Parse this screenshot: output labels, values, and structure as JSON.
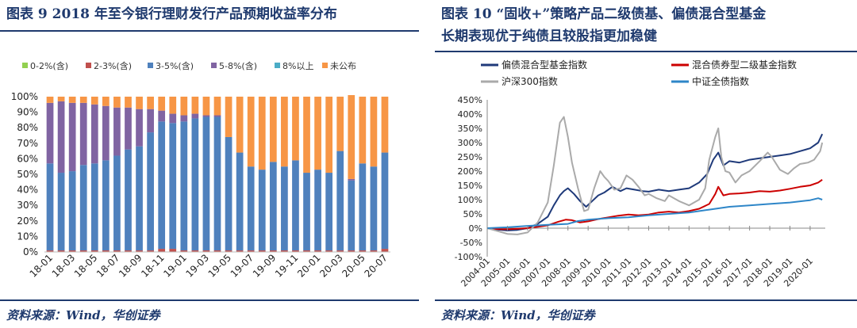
{
  "left": {
    "title": "图表 9   2018 年至今银行理财发行产品预期收益率分布",
    "source": "资料来源：Wind，华创证券"
  },
  "right": {
    "title_line1": "图表 10   “固收+”策略产品二级债基、偏债混合型基金",
    "title_line2": "长期表现优于纯债且较股指更加稳健",
    "source": "资料来源：Wind，华创证券"
  },
  "chart_data": [
    {
      "type": "bar",
      "stacked": true,
      "legend_position": "top",
      "categories": [
        "18-01",
        "18-02",
        "18-03",
        "18-04",
        "18-05",
        "18-06",
        "18-07",
        "18-08",
        "18-09",
        "18-10",
        "18-11",
        "18-12",
        "19-01",
        "19-02",
        "19-03",
        "19-04",
        "19-05",
        "19-06",
        "19-07",
        "19-08",
        "19-09",
        "19-10",
        "19-11",
        "19-12",
        "20-01",
        "20-02",
        "20-03",
        "20-04",
        "20-05",
        "20-06",
        "20-07"
      ],
      "xtick_labels": [
        "18-01",
        "18-03",
        "18-05",
        "18-07",
        "18-09",
        "18-11",
        "19-01",
        "19-03",
        "19-05",
        "19-07",
        "19-09",
        "19-11",
        "20-01",
        "20-03",
        "20-05",
        "20-07"
      ],
      "yticks": [
        "0%",
        "10%",
        "20%",
        "30%",
        "40%",
        "50%",
        "60%",
        "70%",
        "80%",
        "90%",
        "100%"
      ],
      "ylim": [
        0,
        100
      ],
      "series": [
        {
          "name": "0-2%(含)",
          "color": "#92d050",
          "values": [
            0,
            0,
            0,
            0,
            0,
            0,
            0,
            0,
            0,
            0,
            0,
            0,
            0,
            0,
            0,
            0,
            0,
            0,
            0,
            0,
            0,
            0,
            0,
            0,
            0,
            0,
            0,
            0,
            0,
            0,
            0
          ]
        },
        {
          "name": "2-3%(含)",
          "color": "#c0504d",
          "values": [
            1,
            1,
            1,
            1,
            1,
            1,
            1,
            1,
            1,
            1,
            2,
            2,
            1,
            1,
            1,
            1,
            1,
            1,
            1,
            1,
            1,
            1,
            1,
            1,
            1,
            1,
            1,
            1,
            1,
            1,
            2
          ]
        },
        {
          "name": "3-5%(含)",
          "color": "#4f81bd",
          "values": [
            56,
            50,
            51,
            55,
            56,
            58,
            61,
            65,
            67,
            76,
            82,
            81,
            83,
            85,
            86,
            86,
            73,
            63,
            54,
            52,
            57,
            54,
            58,
            50,
            52,
            50,
            64,
            45,
            56,
            54,
            62
          ]
        },
        {
          "name": "5-8%(含)",
          "color": "#8064a2",
          "values": [
            39,
            46,
            44,
            40,
            38,
            35,
            31,
            27,
            24,
            15,
            7,
            6,
            4,
            3,
            1,
            1,
            0,
            0,
            0,
            0,
            0,
            0,
            0,
            0,
            0,
            0,
            0,
            1,
            0,
            0,
            0
          ]
        },
        {
          "name": "8%以上",
          "color": "#4bacc6",
          "values": [
            0,
            0,
            0,
            0,
            0,
            0,
            0,
            0,
            0,
            0,
            0,
            0,
            0,
            0,
            0,
            0,
            0,
            0,
            0,
            0,
            0,
            0,
            0,
            0,
            0,
            0,
            0,
            0,
            0,
            0,
            0
          ]
        },
        {
          "name": "未公布",
          "color": "#f79646",
          "values": [
            4,
            3,
            4,
            4,
            5,
            6,
            7,
            7,
            8,
            8,
            9,
            11,
            12,
            11,
            12,
            12,
            26,
            36,
            45,
            47,
            42,
            45,
            41,
            49,
            47,
            49,
            35,
            54,
            43,
            45,
            36
          ]
        }
      ]
    },
    {
      "type": "line",
      "legend_position": "top",
      "xtick_labels": [
        "2004-01",
        "2005-01",
        "2006-01",
        "2007-01",
        "2008-01",
        "2009-01",
        "2010-01",
        "2011-01",
        "2012-01",
        "2013-01",
        "2014-01",
        "2015-01",
        "2016-01",
        "2017-01",
        "2018-01",
        "2019-01",
        "2020-01"
      ],
      "xlim": [
        2004.0,
        2020.75
      ],
      "yticks": [
        "-100%",
        "-50%",
        "0%",
        "50%",
        "100%",
        "150%",
        "200%",
        "250%",
        "300%",
        "350%",
        "400%",
        "450%"
      ],
      "ylim": [
        -100,
        450
      ],
      "series": [
        {
          "name": "偏债混合型基金指数",
          "color": "#1f3a7a",
          "x": [
            2004.0,
            2004.5,
            2005.0,
            2005.5,
            2006.0,
            2006.5,
            2007.0,
            2007.3,
            2007.6,
            2007.8,
            2008.0,
            2008.3,
            2008.6,
            2008.9,
            2009.2,
            2009.5,
            2009.8,
            2010.2,
            2010.6,
            2010.9,
            2011.3,
            2011.7,
            2012.0,
            2012.5,
            2013.0,
            2013.5,
            2014.0,
            2014.5,
            2014.9,
            2015.2,
            2015.45,
            2015.7,
            2016.0,
            2016.5,
            2017.0,
            2017.5,
            2018.0,
            2018.5,
            2019.0,
            2019.5,
            2020.0,
            2020.4,
            2020.6
          ],
          "y": [
            0,
            -5,
            -8,
            -6,
            0,
            15,
            40,
            80,
            115,
            130,
            140,
            120,
            95,
            75,
            95,
            115,
            125,
            145,
            130,
            140,
            135,
            130,
            128,
            135,
            130,
            135,
            140,
            160,
            190,
            240,
            265,
            220,
            235,
            230,
            240,
            245,
            250,
            255,
            260,
            270,
            280,
            300,
            330
          ]
        },
        {
          "name": "混合债券型二级基金指数",
          "color": "#cc0000",
          "x": [
            2004.0,
            2004.5,
            2005.0,
            2005.5,
            2006.0,
            2006.5,
            2007.0,
            2007.5,
            2007.9,
            2008.2,
            2008.6,
            2009.0,
            2009.5,
            2010.0,
            2010.5,
            2011.0,
            2011.5,
            2012.0,
            2012.5,
            2013.0,
            2013.5,
            2014.0,
            2014.5,
            2015.0,
            2015.3,
            2015.45,
            2015.7,
            2016.0,
            2016.5,
            2017.0,
            2017.5,
            2018.0,
            2018.5,
            2019.0,
            2019.5,
            2020.0,
            2020.4,
            2020.6
          ],
          "y": [
            0,
            -3,
            -4,
            -2,
            0,
            5,
            10,
            22,
            30,
            28,
            20,
            24,
            32,
            38,
            44,
            48,
            45,
            48,
            55,
            58,
            55,
            60,
            68,
            85,
            120,
            145,
            115,
            120,
            122,
            125,
            130,
            128,
            132,
            138,
            145,
            150,
            160,
            170
          ]
        },
        {
          "name": "沪深300指数",
          "color": "#aaaaaa",
          "x": [
            2004.0,
            2004.5,
            2005.0,
            2005.5,
            2006.0,
            2006.5,
            2007.0,
            2007.3,
            2007.6,
            2007.8,
            2008.0,
            2008.2,
            2008.5,
            2008.8,
            2009.0,
            2009.3,
            2009.6,
            2009.8,
            2010.0,
            2010.3,
            2010.6,
            2010.9,
            2011.2,
            2011.5,
            2011.8,
            2012.0,
            2012.4,
            2012.8,
            2013.0,
            2013.5,
            2014.0,
            2014.5,
            2014.8,
            2015.0,
            2015.3,
            2015.45,
            2015.6,
            2015.8,
            2016.0,
            2016.3,
            2016.6,
            2017.0,
            2017.5,
            2017.9,
            2018.1,
            2018.5,
            2018.9,
            2019.2,
            2019.5,
            2019.9,
            2020.2,
            2020.5,
            2020.6
          ],
          "y": [
            0,
            -10,
            -20,
            -22,
            -15,
            20,
            90,
            220,
            370,
            390,
            320,
            230,
            140,
            60,
            65,
            140,
            200,
            180,
            165,
            135,
            140,
            185,
            170,
            145,
            115,
            120,
            105,
            95,
            115,
            95,
            80,
            100,
            140,
            240,
            320,
            350,
            250,
            200,
            195,
            160,
            185,
            200,
            235,
            265,
            250,
            205,
            190,
            210,
            225,
            230,
            240,
            270,
            300
          ]
        },
        {
          "name": "中证全债指数",
          "color": "#2e86c8",
          "x": [
            2004.0,
            2005.0,
            2006.0,
            2007.0,
            2008.0,
            2008.5,
            2009.0,
            2010.0,
            2011.0,
            2012.0,
            2013.0,
            2014.0,
            2015.0,
            2016.0,
            2017.0,
            2018.0,
            2019.0,
            2020.0,
            2020.4,
            2020.6
          ],
          "y": [
            0,
            3,
            8,
            12,
            15,
            25,
            30,
            35,
            38,
            45,
            50,
            55,
            65,
            75,
            80,
            85,
            90,
            98,
            105,
            100
          ]
        }
      ]
    }
  ]
}
